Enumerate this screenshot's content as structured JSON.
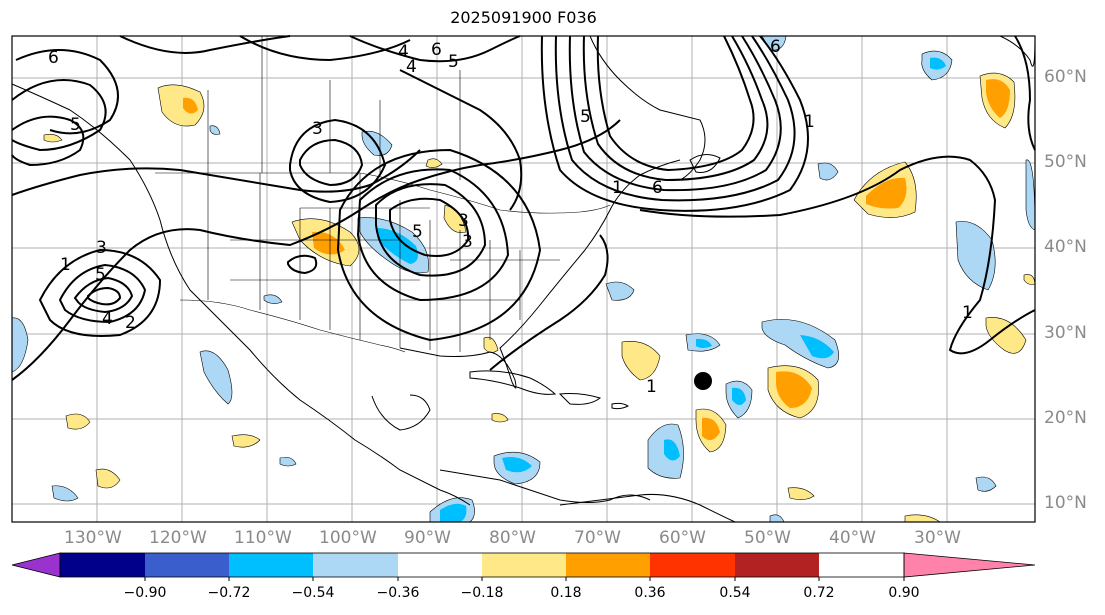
{
  "title": "2025091900 F036",
  "map": {
    "lon_labels": [
      "130°W",
      "120°W",
      "110°W",
      "100°W",
      "90°W",
      "80°W",
      "70°W",
      "60°W",
      "50°W",
      "40°W",
      "30°W"
    ],
    "lat_labels": [
      "60°N",
      "50°N",
      "40°N",
      "30°N",
      "20°N",
      "10°N"
    ],
    "contour_labels": [
      "6",
      "6",
      "5",
      "4",
      "3",
      "4",
      "5",
      "6",
      "3",
      "3",
      "5",
      "1",
      "3",
      "5",
      "4",
      "2",
      "1",
      "5",
      "6",
      "1",
      "1",
      "1"
    ],
    "marker": "storm-center-dot"
  },
  "colorbar": {
    "ticks": [
      "−0.90",
      "−0.72",
      "−0.54",
      "−0.36",
      "−0.18",
      "0.18",
      "0.36",
      "0.54",
      "0.72",
      "0.90"
    ],
    "colors": [
      "#9a32cd",
      "#00008b",
      "#3a5fcd",
      "#00bfff",
      "#add8f5",
      "#ffffff",
      "#ffe887",
      "#ff9f00",
      "#ff3300",
      "#b22222",
      "#ff82ab"
    ]
  },
  "colors": {
    "neg_light": "#add8f5",
    "neg_mid": "#00bfff",
    "pos_light": "#ffe887",
    "pos_mid": "#ff9f00"
  }
}
